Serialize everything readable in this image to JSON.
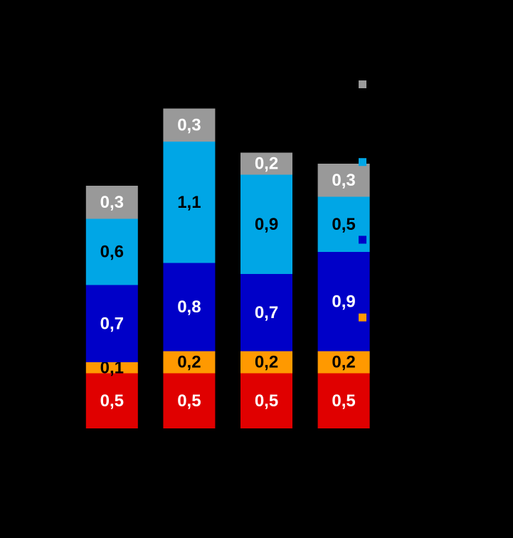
{
  "chart_data": {
    "type": "stacked-bar",
    "categories": [
      null,
      null,
      null,
      null
    ],
    "ylim": [
      0,
      3
    ],
    "series": [
      {
        "color": "#e00000",
        "label_color": "#ffffff",
        "values": [
          0.5,
          0.5,
          0.5,
          0.5
        ],
        "value_labels": [
          "0,5",
          "0,5",
          "0,5",
          "0,5"
        ]
      },
      {
        "color": "#ff9900",
        "label_color": "#000000",
        "values": [
          0.1,
          0.2,
          0.2,
          0.2
        ],
        "value_labels": [
          "0,1",
          "0,2",
          "0,2",
          "0,2"
        ]
      },
      {
        "color": "#0000c8",
        "label_color": "#ffffff",
        "values": [
          0.7,
          0.8,
          0.7,
          0.9
        ],
        "value_labels": [
          "0,7",
          "0,8",
          "0,7",
          "0,9"
        ]
      },
      {
        "color": "#00a6e6",
        "label_color": "#000000",
        "values": [
          0.6,
          1.1,
          0.9,
          0.5
        ],
        "value_labels": [
          "0,6",
          "1,1",
          "0,9",
          "0,5"
        ]
      },
      {
        "color": "#999999",
        "label_color": "#ffffff",
        "values": [
          0.3,
          0.3,
          0.2,
          0.3
        ],
        "value_labels": [
          "0,3",
          "0,3",
          "0,2",
          "0,3"
        ]
      }
    ]
  }
}
